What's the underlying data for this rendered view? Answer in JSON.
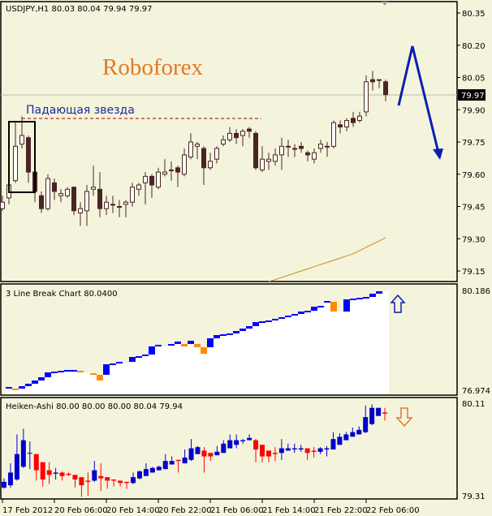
{
  "colors": {
    "background": "#f4f4dc",
    "candle_dark": "#4a2424",
    "ha_up": "#0000cc",
    "ha_down": "#ff0000",
    "lb_up": "#0000ff",
    "lb_down": "#ff8c00",
    "ma": "#cc8a1a",
    "arrow": "#0a1fb0",
    "watermark": "#e07a28",
    "pattern_label": "#1a2a9a"
  },
  "main": {
    "title": "USDJPY,H1  80.03 80.04 79.94 79.97",
    "watermark": "Roboforex",
    "pattern_label": "Падающая звезда",
    "current_price": "79.97"
  },
  "chart_data": [
    {
      "type": "candlestick",
      "title": "USDJPY,H1",
      "ylim": [
        79.1,
        80.38
      ],
      "y_ticks": [
        "80.35",
        "80.20",
        "80.05",
        "79.90",
        "79.75",
        "79.60",
        "79.45",
        "79.30",
        "79.15"
      ],
      "ohlc": [
        [
          79.44,
          79.5,
          79.43,
          79.47
        ],
        [
          79.49,
          79.57,
          79.46,
          79.55
        ],
        [
          79.57,
          79.84,
          79.56,
          79.73
        ],
        [
          79.74,
          79.87,
          79.72,
          79.78
        ],
        [
          79.77,
          79.78,
          79.56,
          79.61
        ],
        [
          79.61,
          79.62,
          79.47,
          79.52
        ],
        [
          79.5,
          79.52,
          79.42,
          79.44
        ],
        [
          79.44,
          79.6,
          79.43,
          79.58
        ],
        [
          79.56,
          79.58,
          79.48,
          79.52
        ],
        [
          79.5,
          79.53,
          79.47,
          79.51
        ],
        [
          79.5,
          79.54,
          79.49,
          79.53
        ],
        [
          79.54,
          79.54,
          79.41,
          79.43
        ],
        [
          79.42,
          79.47,
          79.36,
          79.44
        ],
        [
          79.43,
          79.55,
          79.36,
          79.52
        ],
        [
          79.53,
          79.64,
          79.5,
          79.54
        ],
        [
          79.53,
          79.61,
          79.4,
          79.44
        ],
        [
          79.44,
          79.5,
          79.41,
          79.47
        ],
        [
          79.46,
          79.5,
          79.42,
          79.46
        ],
        [
          79.45,
          79.48,
          79.4,
          79.45
        ],
        [
          79.46,
          79.48,
          79.4,
          79.47
        ],
        [
          79.47,
          79.56,
          79.45,
          79.54
        ],
        [
          79.53,
          79.56,
          79.5,
          79.55
        ],
        [
          79.56,
          79.61,
          79.46,
          79.59
        ],
        [
          79.59,
          79.6,
          79.49,
          79.55
        ],
        [
          79.54,
          79.63,
          79.53,
          79.61
        ],
        [
          79.6,
          79.67,
          79.59,
          79.61
        ],
        [
          79.62,
          79.66,
          79.57,
          79.62
        ],
        [
          79.63,
          79.64,
          79.54,
          79.61
        ],
        [
          79.6,
          79.72,
          79.59,
          79.69
        ],
        [
          79.68,
          79.79,
          79.67,
          79.75
        ],
        [
          79.73,
          79.75,
          79.67,
          79.74
        ],
        [
          79.72,
          79.73,
          79.55,
          79.63
        ],
        [
          79.63,
          79.7,
          79.62,
          79.66
        ],
        [
          79.67,
          79.73,
          79.65,
          79.72
        ],
        [
          79.74,
          79.78,
          79.73,
          79.76
        ],
        [
          79.76,
          79.82,
          79.75,
          79.79
        ],
        [
          79.79,
          79.81,
          79.74,
          79.77
        ],
        [
          79.78,
          79.81,
          79.73,
          79.8
        ],
        [
          79.81,
          79.82,
          79.77,
          79.8
        ],
        [
          79.79,
          79.8,
          79.62,
          79.63
        ],
        [
          79.62,
          79.73,
          79.61,
          79.67
        ],
        [
          79.66,
          79.7,
          79.62,
          79.67
        ],
        [
          79.66,
          79.72,
          79.64,
          79.69
        ],
        [
          79.69,
          79.77,
          79.62,
          79.73
        ],
        [
          79.73,
          79.76,
          79.68,
          79.73
        ],
        [
          79.72,
          79.74,
          79.68,
          79.72
        ],
        [
          79.73,
          79.75,
          79.7,
          79.72
        ],
        [
          79.7,
          79.71,
          79.66,
          79.69
        ],
        [
          79.67,
          79.72,
          79.65,
          79.7
        ],
        [
          79.72,
          79.76,
          79.7,
          79.74
        ],
        [
          79.73,
          79.75,
          79.68,
          79.73
        ],
        [
          79.73,
          79.85,
          79.72,
          79.84
        ],
        [
          79.83,
          79.85,
          79.79,
          79.82
        ],
        [
          79.82,
          79.86,
          79.8,
          79.85
        ],
        [
          79.86,
          79.89,
          79.82,
          79.84
        ],
        [
          79.85,
          79.89,
          79.84,
          79.87
        ],
        [
          79.89,
          80.06,
          79.87,
          80.03
        ],
        [
          80.04,
          80.08,
          79.99,
          80.03
        ],
        [
          80.04,
          80.04,
          80.0,
          80.04
        ],
        [
          80.03,
          80.04,
          79.94,
          79.97
        ]
      ],
      "moving_average": {
        "start_index": 41,
        "values": [
          79.1,
          79.11,
          79.12,
          79.13,
          79.14,
          79.15,
          79.16,
          79.17,
          79.18,
          79.19,
          79.2,
          79.21,
          79.22,
          79.23,
          79.245,
          79.26,
          79.275,
          79.29,
          79.305
        ]
      }
    },
    {
      "type": "line-break",
      "title": "3 Line Break Chart 80.0400",
      "ylim": [
        76.974,
        80.186
      ],
      "y_ticks": [
        "80.186",
        "76.974"
      ],
      "bricks": [
        [
          77.027,
          77.079,
          "up"
        ],
        [
          76.974,
          77.027,
          "down"
        ],
        [
          77.027,
          77.105,
          "up"
        ],
        [
          77.105,
          77.184,
          "up"
        ],
        [
          77.184,
          77.288,
          "up"
        ],
        [
          77.288,
          77.392,
          "up"
        ],
        [
          77.392,
          77.549,
          "up"
        ],
        [
          77.549,
          77.575,
          "up"
        ],
        [
          77.575,
          77.601,
          "up"
        ],
        [
          77.601,
          77.627,
          "up"
        ],
        [
          77.601,
          77.627,
          "up"
        ],
        [
          77.549,
          77.601,
          "down"
        ],
        null,
        [
          77.471,
          77.523,
          "down"
        ],
        [
          77.288,
          77.471,
          "down"
        ],
        [
          77.471,
          77.81,
          "up"
        ],
        [
          77.81,
          77.836,
          "up"
        ],
        [
          77.836,
          77.888,
          "up"
        ],
        null,
        [
          77.888,
          78.045,
          "up"
        ],
        [
          78.045,
          78.071,
          "up"
        ],
        [
          78.071,
          78.123,
          "up"
        ],
        [
          78.123,
          78.385,
          "up"
        ],
        [
          78.385,
          78.437,
          "up"
        ],
        null,
        [
          78.437,
          78.463,
          "up"
        ],
        [
          78.463,
          78.541,
          "up"
        ],
        [
          78.385,
          78.463,
          "down"
        ],
        [
          78.463,
          78.567,
          "up"
        ],
        [
          78.358,
          78.463,
          "down"
        ],
        [
          78.149,
          78.358,
          "down"
        ],
        [
          78.358,
          78.646,
          "up"
        ],
        [
          78.646,
          78.75,
          "up"
        ],
        [
          78.75,
          78.776,
          "up"
        ],
        [
          78.776,
          78.802,
          "up"
        ],
        [
          78.802,
          78.881,
          "up"
        ],
        [
          78.881,
          78.959,
          "up"
        ],
        [
          78.959,
          79.037,
          "up"
        ],
        [
          79.037,
          79.168,
          "up"
        ],
        [
          79.168,
          79.194,
          "up"
        ],
        [
          79.194,
          79.22,
          "up"
        ],
        [
          79.22,
          79.272,
          "up"
        ],
        [
          79.272,
          79.324,
          "up"
        ],
        [
          79.324,
          79.377,
          "up"
        ],
        [
          79.377,
          79.429,
          "up"
        ],
        [
          79.429,
          79.507,
          "up"
        ],
        [
          79.507,
          79.533,
          "up"
        ],
        [
          79.533,
          79.664,
          "up"
        ],
        [
          79.664,
          79.69,
          "up"
        ],
        [
          79.82,
          79.847,
          "up"
        ],
        [
          79.507,
          79.82,
          "down"
        ],
        null,
        [
          79.507,
          79.899,
          "up"
        ],
        [
          79.899,
          79.925,
          "up"
        ],
        [
          79.925,
          79.951,
          "up"
        ],
        [
          79.951,
          79.977,
          "up"
        ],
        [
          79.977,
          80.082,
          "up"
        ],
        [
          80.082,
          80.16,
          "up"
        ]
      ]
    },
    {
      "type": "heiken-ashi",
      "title": "Heiken-Ashi 80.00 80.00 80.00 80.04 79.94",
      "ylim": [
        79.28,
        80.12
      ],
      "y_ticks": [
        "80.11",
        "79.31"
      ],
      "x_ticks": [
        "17 Feb 2012",
        "20 Feb 06:00",
        "20 Feb 14:00",
        "20 Feb 22:00",
        "21 Feb 06:00",
        "21 Feb 14:00",
        "21 Feb 22:00",
        "22 Feb 06:00"
      ],
      "ohlc": [
        [
          79.38,
          79.46,
          79.37,
          79.43
        ],
        [
          79.4,
          79.59,
          79.38,
          79.51
        ],
        [
          79.45,
          79.84,
          79.44,
          79.67
        ],
        [
          79.56,
          79.89,
          79.55,
          79.79
        ],
        [
          79.68,
          79.78,
          79.54,
          79.68
        ],
        [
          79.67,
          79.67,
          79.44,
          79.53
        ],
        [
          79.6,
          79.6,
          79.39,
          79.45
        ],
        [
          79.53,
          79.6,
          79.41,
          79.49
        ],
        [
          79.5,
          79.55,
          79.45,
          79.51
        ],
        [
          79.51,
          79.52,
          79.44,
          79.48
        ],
        [
          79.5,
          79.51,
          79.48,
          79.49
        ],
        [
          79.49,
          79.49,
          79.38,
          79.45
        ],
        [
          79.47,
          79.47,
          79.3,
          79.4
        ],
        [
          79.44,
          79.51,
          79.31,
          79.43
        ],
        [
          79.44,
          79.61,
          79.43,
          79.53
        ],
        [
          79.48,
          79.59,
          79.35,
          79.46
        ],
        [
          79.47,
          79.47,
          79.37,
          79.44
        ],
        [
          79.45,
          79.45,
          79.39,
          79.44
        ],
        [
          79.44,
          79.44,
          79.39,
          79.42
        ],
        [
          79.43,
          79.43,
          79.37,
          79.42
        ],
        [
          79.42,
          79.51,
          79.41,
          79.47
        ],
        [
          79.46,
          79.53,
          79.45,
          79.52
        ],
        [
          79.48,
          79.59,
          79.48,
          79.54
        ],
        [
          79.51,
          79.56,
          79.51,
          79.55
        ],
        [
          79.53,
          79.57,
          79.53,
          79.56
        ],
        [
          79.54,
          79.67,
          79.54,
          79.61
        ],
        [
          79.58,
          79.65,
          79.58,
          79.61
        ],
        [
          79.62,
          79.62,
          79.51,
          79.61
        ],
        [
          79.59,
          79.71,
          79.59,
          79.64
        ],
        [
          79.62,
          79.8,
          79.61,
          79.72
        ],
        [
          79.67,
          79.74,
          79.67,
          79.73
        ],
        [
          79.7,
          79.73,
          79.51,
          79.65
        ],
        [
          79.68,
          79.68,
          79.61,
          79.65
        ],
        [
          79.66,
          79.74,
          79.66,
          79.69
        ],
        [
          79.68,
          79.79,
          79.68,
          79.76
        ],
        [
          79.72,
          79.84,
          79.72,
          79.79
        ],
        [
          79.75,
          79.84,
          79.72,
          79.79
        ],
        [
          79.78,
          79.8,
          79.76,
          79.79
        ],
        [
          79.79,
          79.84,
          79.79,
          79.81
        ],
        [
          79.79,
          79.8,
          79.6,
          79.71
        ],
        [
          79.75,
          79.75,
          79.6,
          79.65
        ],
        [
          79.7,
          79.7,
          79.6,
          79.65
        ],
        [
          79.68,
          79.73,
          79.61,
          79.67
        ],
        [
          79.68,
          79.8,
          79.62,
          79.72
        ],
        [
          79.7,
          79.76,
          79.7,
          79.72
        ],
        [
          79.71,
          79.76,
          79.68,
          79.72
        ],
        [
          79.71,
          79.75,
          79.69,
          79.72
        ],
        [
          79.72,
          79.72,
          79.62,
          79.68
        ],
        [
          79.7,
          79.73,
          79.64,
          79.69
        ],
        [
          79.69,
          79.73,
          79.67,
          79.72
        ],
        [
          79.71,
          79.74,
          79.65,
          79.72
        ],
        [
          79.71,
          79.86,
          79.71,
          79.8
        ],
        [
          79.75,
          79.85,
          79.75,
          79.82
        ],
        [
          79.79,
          79.86,
          79.79,
          79.84
        ],
        [
          79.82,
          79.9,
          79.82,
          79.86
        ],
        [
          79.84,
          79.91,
          79.84,
          79.88
        ],
        [
          79.86,
          80.09,
          79.85,
          79.99
        ],
        [
          79.93,
          80.1,
          79.92,
          80.07
        ],
        [
          80.0,
          80.07,
          80.0,
          80.07
        ],
        [
          80.03,
          80.07,
          79.96,
          80.02
        ]
      ]
    }
  ]
}
